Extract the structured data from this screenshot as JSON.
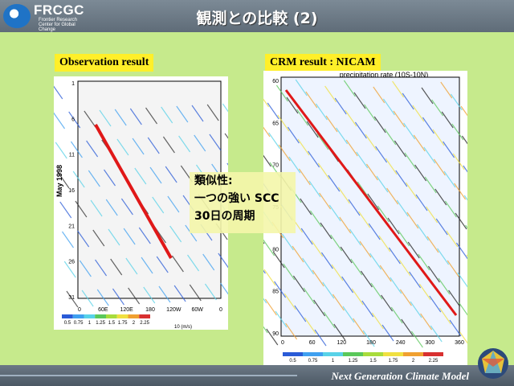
{
  "header": {
    "logo_text": "FRCGC",
    "logo_sub": "Frontier Research Center for Global Change",
    "title": "観測との比較 (2)"
  },
  "left_panel": {
    "label": "Observation result",
    "y_axis_title": "May 1998",
    "y_ticks": [
      "1",
      "6",
      "11",
      "16",
      "21",
      "26",
      "31"
    ],
    "x_ticks": [
      "0",
      "60E",
      "120E",
      "180",
      "120W",
      "60W",
      "0"
    ],
    "legend_ticks": [
      "0.5",
      "0.75",
      "1",
      "1.25",
      "1.5",
      "1.75",
      "2",
      "2.25"
    ],
    "vector_label": "10 (m/s)"
  },
  "right_panel": {
    "label": "CRM result : NICAM",
    "plot_title": "precipitation rate (10S-10N)",
    "y_ticks": [
      "60",
      "65",
      "70",
      "75",
      "80",
      "85",
      "90"
    ],
    "x_ticks": [
      "0",
      "60",
      "120",
      "180",
      "240",
      "300",
      "360"
    ],
    "legend_ticks": [
      "0.5",
      "0.75",
      "1",
      "1.25",
      "1.5",
      "1.75",
      "2",
      "2.25"
    ]
  },
  "note": {
    "line1": "類似性:",
    "line2": "一つの強い SCC",
    "line3": "30日の周期"
  },
  "footer": {
    "text": "Next Generation Climate Model"
  },
  "colors": {
    "legend": [
      "#2a5bd7",
      "#3fa0f0",
      "#58d2e8",
      "#5ac85a",
      "#a8dc3c",
      "#f0e040",
      "#f0a030",
      "#d83030"
    ]
  }
}
